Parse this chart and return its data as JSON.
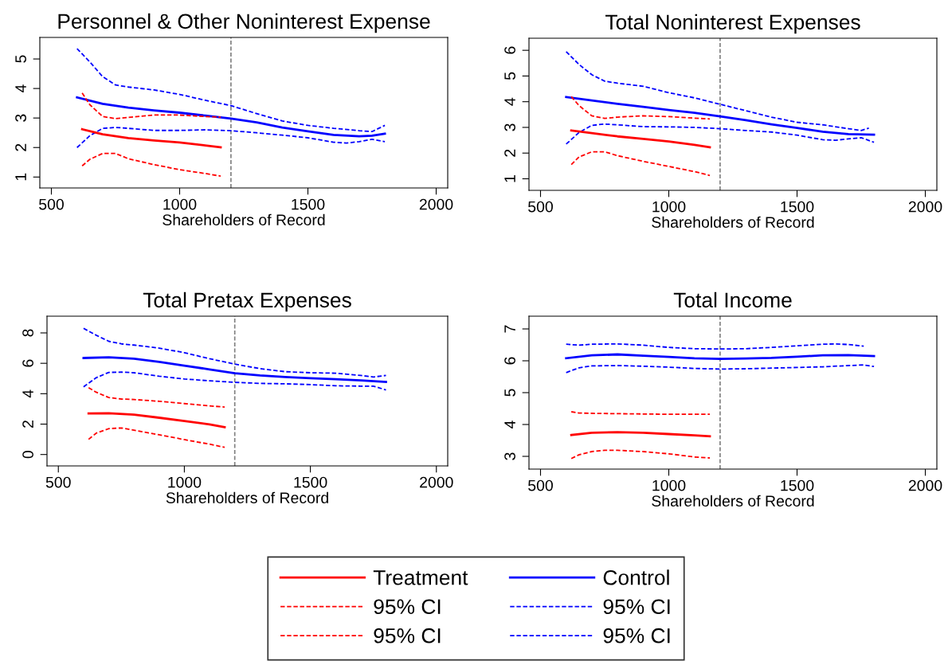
{
  "chart_data": [
    {
      "type": "line",
      "title": "Personnel & Other Noninterest Expense",
      "xlabel": "Shareholders of Record",
      "xlim": [
        455,
        2045
      ],
      "ylim": [
        0.63,
        5.73
      ],
      "xticks": [
        500,
        1000,
        1500,
        2000
      ],
      "yticks": [
        1,
        2,
        3,
        4,
        5
      ],
      "grid": false,
      "ref_lines": [
        {
          "axis": "x",
          "value": 1200,
          "color": "#808080",
          "line_style": "dashed"
        }
      ],
      "series": [
        {
          "color": "#ff0000",
          "line_style": "solid",
          "x": [
            620,
            700,
            800,
            900,
            1000,
            1100,
            1160
          ],
          "values": [
            2.62,
            2.45,
            2.32,
            2.24,
            2.17,
            2.07,
            2.01
          ]
        },
        {
          "color": "#ff0000",
          "line_style": "dashed",
          "x": [
            620,
            650,
            700,
            750,
            800,
            900,
            1000,
            1100,
            1160
          ],
          "values": [
            3.85,
            3.45,
            3.05,
            2.98,
            3.02,
            3.1,
            3.1,
            3.05,
            3.03
          ]
        },
        {
          "color": "#ff0000",
          "line_style": "dashed",
          "x": [
            620,
            650,
            700,
            750,
            800,
            900,
            1000,
            1100,
            1160
          ],
          "values": [
            1.38,
            1.6,
            1.8,
            1.8,
            1.62,
            1.42,
            1.25,
            1.12,
            1.03
          ]
        },
        {
          "color": "#0000ff",
          "line_style": "solid",
          "x": [
            600,
            700,
            800,
            900,
            1000,
            1100,
            1200,
            1300,
            1400,
            1500,
            1600,
            1700,
            1750,
            1800
          ],
          "values": [
            3.7,
            3.48,
            3.35,
            3.26,
            3.18,
            3.08,
            2.98,
            2.85,
            2.68,
            2.55,
            2.43,
            2.38,
            2.4,
            2.47
          ]
        },
        {
          "color": "#0000ff",
          "line_style": "dashed",
          "x": [
            600,
            650,
            700,
            750,
            800,
            900,
            1000,
            1100,
            1200,
            1300,
            1400,
            1500,
            1600,
            1700,
            1750,
            1800
          ],
          "values": [
            5.35,
            4.9,
            4.4,
            4.12,
            4.05,
            3.95,
            3.8,
            3.6,
            3.42,
            3.15,
            2.9,
            2.75,
            2.65,
            2.57,
            2.54,
            2.75
          ]
        },
        {
          "color": "#0000ff",
          "line_style": "dashed",
          "x": [
            600,
            650,
            700,
            750,
            800,
            900,
            1000,
            1100,
            1200,
            1300,
            1400,
            1500,
            1600,
            1650,
            1700,
            1750,
            1800
          ],
          "values": [
            2.0,
            2.4,
            2.65,
            2.68,
            2.65,
            2.58,
            2.58,
            2.6,
            2.57,
            2.5,
            2.42,
            2.33,
            2.18,
            2.15,
            2.2,
            2.28,
            2.2
          ]
        }
      ]
    },
    {
      "type": "line",
      "title": "Total Noninterest Expenses",
      "xlabel": "Shareholders of Record",
      "xlim": [
        455,
        2045
      ],
      "ylim": [
        0.55,
        6.47
      ],
      "xticks": [
        500,
        1000,
        1500,
        2000
      ],
      "yticks": [
        1,
        2,
        3,
        4,
        5,
        6
      ],
      "grid": false,
      "ref_lines": [
        {
          "axis": "x",
          "value": 1200,
          "color": "#808080",
          "line_style": "dashed"
        }
      ],
      "series": [
        {
          "color": "#ff0000",
          "line_style": "solid",
          "x": [
            620,
            700,
            800,
            900,
            1000,
            1100,
            1160
          ],
          "values": [
            2.88,
            2.78,
            2.65,
            2.55,
            2.45,
            2.32,
            2.23
          ]
        },
        {
          "color": "#ff0000",
          "line_style": "dashed",
          "x": [
            620,
            650,
            700,
            750,
            800,
            900,
            1000,
            1100,
            1160
          ],
          "values": [
            4.2,
            3.85,
            3.45,
            3.35,
            3.4,
            3.45,
            3.42,
            3.36,
            3.33
          ]
        },
        {
          "color": "#ff0000",
          "line_style": "dashed",
          "x": [
            620,
            650,
            700,
            750,
            800,
            900,
            1000,
            1100,
            1160
          ],
          "values": [
            1.55,
            1.85,
            2.05,
            2.05,
            1.9,
            1.68,
            1.48,
            1.28,
            1.13
          ]
        },
        {
          "color": "#0000ff",
          "line_style": "solid",
          "x": [
            600,
            700,
            800,
            900,
            1000,
            1100,
            1200,
            1300,
            1400,
            1500,
            1600,
            1700,
            1800
          ],
          "values": [
            4.18,
            4.05,
            3.92,
            3.8,
            3.68,
            3.57,
            3.43,
            3.28,
            3.12,
            2.98,
            2.83,
            2.74,
            2.72
          ]
        },
        {
          "color": "#0000ff",
          "line_style": "dashed",
          "x": [
            600,
            650,
            700,
            750,
            800,
            900,
            1000,
            1100,
            1200,
            1300,
            1400,
            1500,
            1600,
            1700,
            1750,
            1780
          ],
          "values": [
            5.95,
            5.45,
            5.05,
            4.8,
            4.72,
            4.6,
            4.35,
            4.15,
            3.9,
            3.65,
            3.4,
            3.2,
            3.1,
            2.95,
            2.88,
            2.97
          ]
        },
        {
          "color": "#0000ff",
          "line_style": "dashed",
          "x": [
            600,
            650,
            700,
            750,
            800,
            900,
            1000,
            1100,
            1200,
            1300,
            1400,
            1500,
            1600,
            1650,
            1700,
            1750,
            1800
          ],
          "values": [
            2.35,
            2.8,
            3.08,
            3.13,
            3.1,
            3.03,
            3.02,
            3.0,
            2.95,
            2.88,
            2.82,
            2.7,
            2.52,
            2.5,
            2.55,
            2.6,
            2.42
          ]
        }
      ]
    },
    {
      "type": "line",
      "title": "Total Pretax Expenses",
      "xlabel": "Shareholders of Record",
      "xlim": [
        455,
        2045
      ],
      "ylim": [
        -0.75,
        9.1
      ],
      "xticks": [
        500,
        1000,
        1500,
        2000
      ],
      "yticks": [
        0,
        2,
        4,
        6,
        8
      ],
      "grid": false,
      "ref_lines": [
        {
          "axis": "x",
          "value": 1200,
          "color": "#808080",
          "line_style": "dashed"
        }
      ],
      "series": [
        {
          "color": "#ff0000",
          "line_style": "solid",
          "x": [
            620,
            700,
            800,
            900,
            1000,
            1100,
            1160
          ],
          "values": [
            2.7,
            2.72,
            2.62,
            2.42,
            2.2,
            1.98,
            1.8
          ]
        },
        {
          "color": "#ff0000",
          "line_style": "dashed",
          "x": [
            620,
            650,
            700,
            750,
            800,
            900,
            1000,
            1100,
            1160
          ],
          "values": [
            4.4,
            4.1,
            3.75,
            3.65,
            3.62,
            3.5,
            3.35,
            3.2,
            3.12
          ]
        },
        {
          "color": "#ff0000",
          "line_style": "dashed",
          "x": [
            620,
            650,
            700,
            750,
            800,
            900,
            1000,
            1100,
            1160
          ],
          "values": [
            1.0,
            1.4,
            1.7,
            1.75,
            1.6,
            1.3,
            0.98,
            0.68,
            0.47
          ]
        },
        {
          "color": "#0000ff",
          "line_style": "solid",
          "x": [
            600,
            700,
            800,
            900,
            1000,
            1100,
            1200,
            1300,
            1400,
            1500,
            1600,
            1700,
            1800
          ],
          "values": [
            6.35,
            6.4,
            6.3,
            6.1,
            5.85,
            5.6,
            5.35,
            5.2,
            5.1,
            5.02,
            4.95,
            4.87,
            4.77
          ]
        },
        {
          "color": "#0000ff",
          "line_style": "dashed",
          "x": [
            600,
            650,
            700,
            750,
            800,
            900,
            1000,
            1100,
            1200,
            1300,
            1400,
            1500,
            1600,
            1700,
            1750,
            1800
          ],
          "values": [
            8.3,
            7.85,
            7.45,
            7.28,
            7.2,
            7.0,
            6.7,
            6.3,
            5.95,
            5.65,
            5.45,
            5.38,
            5.35,
            5.2,
            5.1,
            5.2
          ]
        },
        {
          "color": "#0000ff",
          "line_style": "dashed",
          "x": [
            600,
            650,
            700,
            750,
            800,
            900,
            1000,
            1100,
            1200,
            1300,
            1400,
            1500,
            1600,
            1700,
            1750,
            1800
          ],
          "values": [
            4.45,
            5.05,
            5.4,
            5.42,
            5.38,
            5.15,
            4.97,
            4.85,
            4.75,
            4.68,
            4.65,
            4.6,
            4.52,
            4.5,
            4.5,
            4.25
          ]
        }
      ]
    },
    {
      "type": "line",
      "title": "Total Income",
      "xlabel": "Shareholders of Record",
      "xlim": [
        455,
        2045
      ],
      "ylim": [
        2.6,
        7.4
      ],
      "xticks": [
        500,
        1000,
        1500,
        2000
      ],
      "yticks": [
        3,
        4,
        5,
        6,
        7
      ],
      "grid": false,
      "legend": "bottom",
      "ref_lines": [
        {
          "axis": "x",
          "value": 1200,
          "color": "#808080",
          "line_style": "dashed"
        }
      ],
      "series": [
        {
          "name": "Treatment",
          "color": "#ff0000",
          "line_style": "solid",
          "x": [
            620,
            700,
            800,
            900,
            1000,
            1100,
            1160
          ],
          "values": [
            3.67,
            3.74,
            3.76,
            3.74,
            3.7,
            3.66,
            3.63
          ]
        },
        {
          "name": "95% CI",
          "color": "#ff0000",
          "line_style": "dashed",
          "x": [
            620,
            650,
            700,
            800,
            900,
            1000,
            1100,
            1160
          ],
          "values": [
            4.4,
            4.36,
            4.35,
            4.34,
            4.33,
            4.32,
            4.32,
            4.32
          ]
        },
        {
          "name": "95% CI",
          "color": "#ff0000",
          "line_style": "dashed",
          "x": [
            620,
            650,
            700,
            750,
            800,
            900,
            1000,
            1100,
            1160
          ],
          "values": [
            2.93,
            3.05,
            3.15,
            3.19,
            3.19,
            3.15,
            3.08,
            2.98,
            2.95
          ]
        },
        {
          "name": "Control",
          "color": "#0000ff",
          "line_style": "solid",
          "x": [
            600,
            700,
            800,
            900,
            1000,
            1100,
            1200,
            1300,
            1400,
            1500,
            1600,
            1700,
            1800
          ],
          "values": [
            6.08,
            6.17,
            6.2,
            6.16,
            6.12,
            6.08,
            6.06,
            6.07,
            6.09,
            6.13,
            6.17,
            6.18,
            6.15
          ]
        },
        {
          "name": "95% CI",
          "color": "#0000ff",
          "line_style": "dashed",
          "x": [
            600,
            650,
            700,
            800,
            900,
            1000,
            1100,
            1200,
            1300,
            1400,
            1500,
            1600,
            1650,
            1700,
            1760
          ],
          "values": [
            6.52,
            6.49,
            6.52,
            6.53,
            6.49,
            6.42,
            6.38,
            6.37,
            6.38,
            6.42,
            6.47,
            6.52,
            6.53,
            6.51,
            6.46
          ]
        },
        {
          "name": "95% CI",
          "color": "#0000ff",
          "line_style": "dashed",
          "x": [
            600,
            650,
            700,
            800,
            900,
            1000,
            1100,
            1200,
            1300,
            1400,
            1500,
            1600,
            1700,
            1760,
            1800
          ],
          "values": [
            5.63,
            5.78,
            5.84,
            5.85,
            5.83,
            5.8,
            5.76,
            5.74,
            5.75,
            5.77,
            5.79,
            5.81,
            5.85,
            5.87,
            5.82
          ]
        }
      ]
    }
  ]
}
